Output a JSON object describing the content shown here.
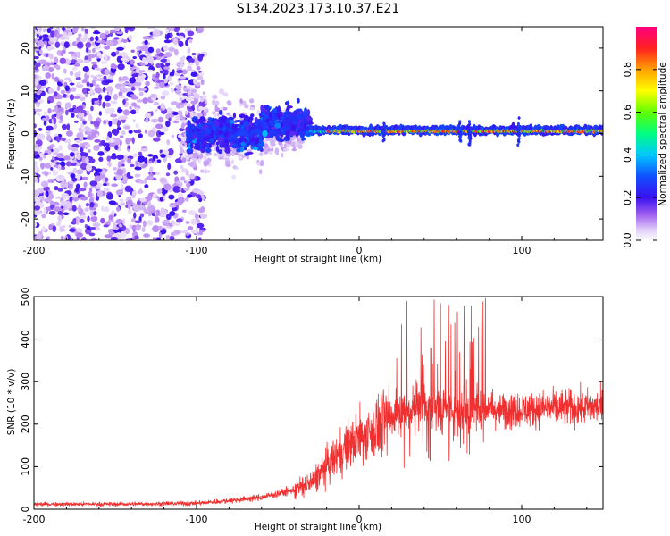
{
  "title": "S134.2023.173.10.37.E21",
  "chart_data": [
    {
      "type": "heatmap",
      "xlabel": "Height of straight line (km)",
      "ylabel": "Frequency (Hz)",
      "xlim": [
        -200,
        150
      ],
      "ylim": [
        -25,
        25
      ],
      "xticks": [
        -200,
        -100,
        0,
        100
      ],
      "xtick_labels": [
        "-200",
        "-100",
        "0",
        "100"
      ],
      "yticks": [
        -20,
        -10,
        0,
        10,
        20
      ],
      "ytick_labels": [
        "-20",
        "-10",
        "0",
        "10",
        "20"
      ],
      "colorbar": {
        "label": "Normalized spectral amplitude",
        "range": [
          0,
          1
        ],
        "ticks": [
          0.0,
          0.2,
          0.4,
          0.6,
          0.8
        ],
        "tick_labels": [
          "0.0",
          "0.2",
          "0.4",
          "0.6",
          "0.8"
        ],
        "colormap": [
          "#ffffff",
          "#c8a8f0",
          "#7a1ef0",
          "#2b2bff",
          "#00c8ff",
          "#00ff80",
          "#80ff00",
          "#ffff00",
          "#ffa000",
          "#ff2020",
          "#ff0080"
        ]
      },
      "features": [
        {
          "x_range": [
            -200,
            -105
          ],
          "f_range": [
            -25,
            25
          ],
          "amplitude": 0.1
        },
        {
          "x_range": [
            -105,
            -30
          ],
          "f_range": [
            -8,
            10
          ],
          "amplitude": 0.25
        },
        {
          "x_range": [
            -30,
            150
          ],
          "f_center": 0.5,
          "f_width": 2,
          "amplitude": 0.85
        }
      ]
    },
    {
      "type": "line",
      "xlabel": "Height of straight line (km)",
      "ylabel": "SNR (10 * v/v)",
      "xlim": [
        -200,
        150
      ],
      "ylim": [
        0,
        500
      ],
      "xticks": [
        -200,
        -100,
        0,
        100
      ],
      "xtick_labels": [
        "-200",
        "-100",
        "0",
        "100"
      ],
      "yticks": [
        0,
        100,
        200,
        300,
        400,
        500
      ],
      "ytick_labels": [
        "0",
        "100",
        "200",
        "300",
        "400",
        "500"
      ],
      "color": "#f03030",
      "trend": {
        "x": [
          -200,
          -150,
          -120,
          -100,
          -80,
          -60,
          -40,
          -30,
          -20,
          -10,
          0,
          10,
          20,
          25,
          30,
          40,
          50,
          60,
          70,
          80,
          90,
          100,
          120,
          150
        ],
        "y": [
          12,
          12,
          13,
          14,
          20,
          28,
          45,
          60,
          100,
          140,
          170,
          190,
          215,
          230,
          235,
          240,
          235,
          235,
          235,
          240,
          232,
          235,
          238,
          240
        ]
      }
    }
  ]
}
